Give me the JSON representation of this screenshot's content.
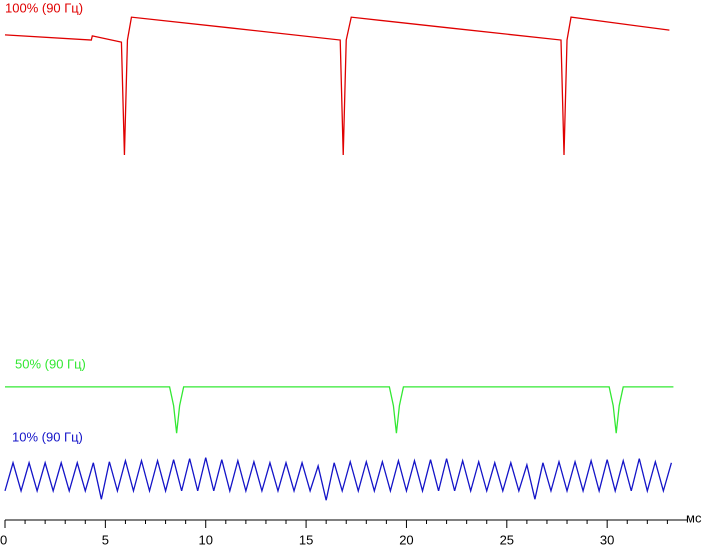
{
  "chart_data": {
    "type": "line",
    "xlabel": "мс",
    "xlim": [
      0,
      34.6
    ],
    "ylim": [
      0,
      100
    ],
    "xticks": [
      0,
      5,
      10,
      15,
      20,
      25,
      30
    ],
    "xminorticks": [
      1,
      2,
      3,
      4,
      6,
      7,
      8,
      9,
      11,
      12,
      13,
      14,
      16,
      17,
      18,
      19,
      21,
      22,
      23,
      24,
      26,
      27,
      28,
      29,
      31,
      32,
      33
    ],
    "series": [
      {
        "name": "100% (90 Гц)",
        "color": "#e00000",
        "x": [
          0,
          4.3,
          4.35,
          5.8,
          5.95,
          6.1,
          6.3,
          11.3,
          16.7,
          16.85,
          17.0,
          17.25,
          22.2,
          27.7,
          27.85,
          28.0,
          28.2,
          33.1
        ],
        "values": [
          93.3,
          92.3,
          93.1,
          91.9,
          70.2,
          92.3,
          96.7,
          94.6,
          92.3,
          70.2,
          92.3,
          96.7,
          94.6,
          92.3,
          70.2,
          92.3,
          96.7,
          94.2
        ]
      },
      {
        "name": "50% (90 Гц)",
        "color": "#33e833",
        "x": [
          0,
          8.2,
          8.4,
          8.55,
          8.7,
          8.9,
          19.15,
          19.35,
          19.5,
          19.65,
          19.85,
          30.1,
          30.3,
          30.45,
          30.6,
          30.8,
          33.3
        ],
        "values": [
          25.6,
          25.6,
          22,
          16.7,
          22,
          25.6,
          25.6,
          22,
          16.7,
          22,
          25.6,
          25.6,
          22,
          16.7,
          22,
          25.6,
          25.6
        ]
      },
      {
        "name": "10% (90 Гц)",
        "color": "#1414c8",
        "x": [
          0,
          0.4,
          0.8,
          1.2,
          1.6,
          2,
          2.4,
          2.8,
          3.2,
          3.6,
          4,
          4.4,
          4.8,
          5.2,
          5.6,
          6,
          6.4,
          6.8,
          7.2,
          7.6,
          8,
          8.4,
          8.8,
          9.2,
          9.6,
          10,
          10.4,
          10.8,
          11.2,
          11.6,
          12,
          12.4,
          12.8,
          13.2,
          13.6,
          14,
          14.4,
          14.8,
          15.2,
          15.6,
          16,
          16.4,
          16.8,
          17.2,
          17.6,
          18,
          18.4,
          18.8,
          19.2,
          19.6,
          20,
          20.4,
          20.8,
          21.2,
          21.6,
          22,
          22.4,
          22.8,
          23.2,
          23.6,
          24,
          24.4,
          24.8,
          25.2,
          25.6,
          26,
          26.4,
          26.8,
          27.2,
          27.6,
          28,
          28.4,
          28.8,
          29.2,
          29.6,
          30,
          30.4,
          30.8,
          31.2,
          31.6,
          32,
          32.4,
          32.8,
          33.2
        ],
        "values": [
          5.6,
          11,
          5.6,
          11,
          5.6,
          11,
          5.6,
          11,
          5.6,
          11,
          5.6,
          11,
          4,
          11.2,
          5.6,
          11.4,
          5.6,
          11.4,
          5.6,
          11.4,
          5.6,
          11.6,
          5.6,
          11.8,
          5.6,
          12,
          5.6,
          11.6,
          5.6,
          11.4,
          5.6,
          11.2,
          5.6,
          11,
          5.6,
          11,
          5.6,
          11,
          5.6,
          10.4,
          3.8,
          11,
          5.6,
          11.2,
          5.6,
          11.2,
          5.6,
          11.2,
          5.6,
          11.4,
          5.6,
          11.4,
          5.6,
          11.6,
          5.6,
          11.8,
          5.6,
          11.4,
          5.6,
          11.2,
          5.6,
          11,
          5.6,
          11,
          5.6,
          10.6,
          4,
          11,
          5.6,
          11.2,
          5.6,
          11.2,
          5.6,
          11.4,
          5.6,
          11.6,
          5.6,
          11.4,
          5.6,
          11.8,
          5.6,
          11.2,
          5.6,
          11
        ]
      }
    ]
  }
}
